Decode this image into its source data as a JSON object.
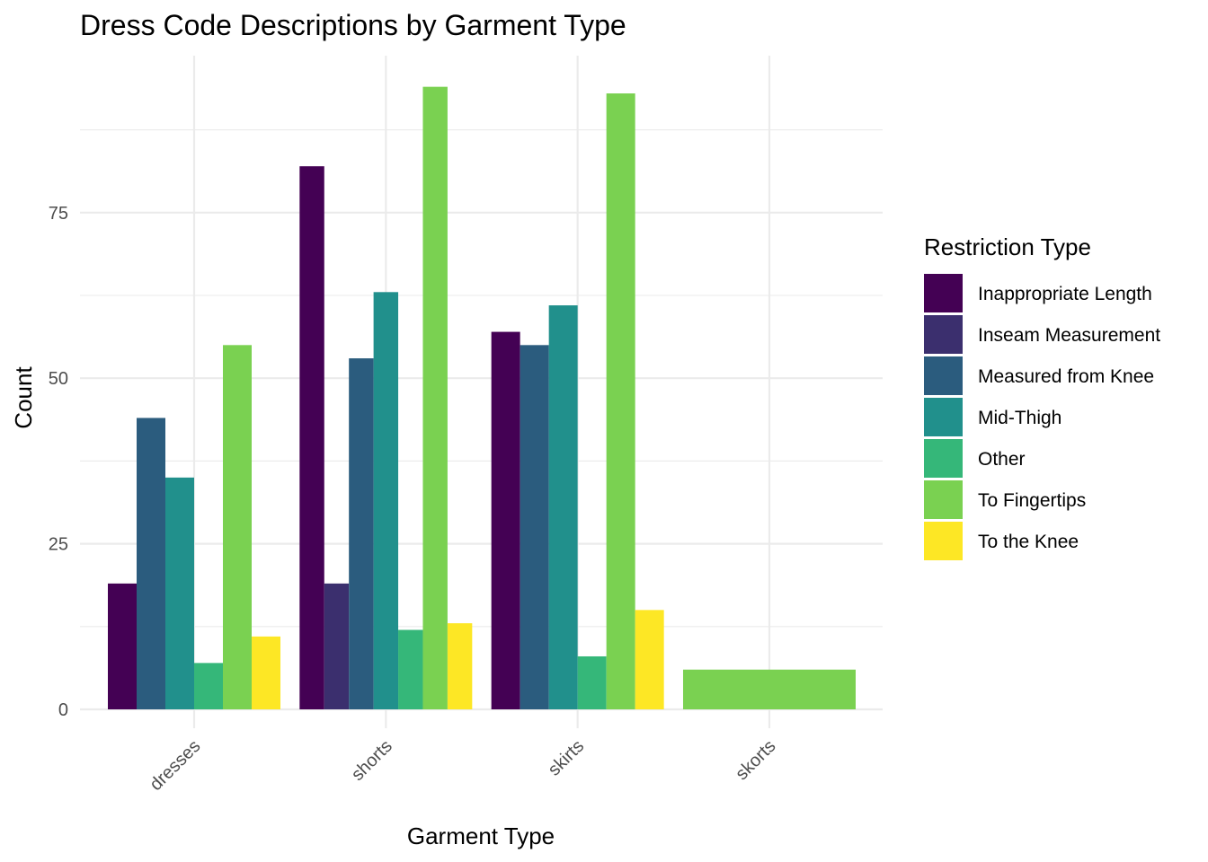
{
  "chart_data": {
    "type": "bar",
    "title": "Dress Code Descriptions by Garment Type",
    "xlabel": "Garment Type",
    "ylabel": "Count",
    "ylim": [
      0,
      100
    ],
    "yticks": [
      0,
      25,
      50,
      75
    ],
    "grid": true,
    "legend_title": "Restriction Type",
    "legend_position": "right",
    "categories": [
      "dresses",
      "shorts",
      "skirts",
      "skorts"
    ],
    "series": [
      {
        "name": "Inappropriate Length",
        "color": "#440154",
        "values": [
          19,
          82,
          57,
          null
        ]
      },
      {
        "name": "Inseam Measurement",
        "color": "#3B2F6E",
        "values": [
          null,
          19,
          null,
          null
        ]
      },
      {
        "name": "Measured from Knee",
        "color": "#2B5C7E",
        "values": [
          44,
          53,
          55,
          null
        ]
      },
      {
        "name": "Mid-Thigh",
        "color": "#21908C",
        "values": [
          35,
          63,
          61,
          null
        ]
      },
      {
        "name": "Other",
        "color": "#35B779",
        "values": [
          7,
          12,
          8,
          null
        ]
      },
      {
        "name": "To Fingertips",
        "color": "#7AD151",
        "values": [
          55,
          94,
          93,
          6
        ]
      },
      {
        "name": "To the Knee",
        "color": "#FDE725",
        "values": [
          11,
          13,
          15,
          null
        ]
      }
    ]
  }
}
